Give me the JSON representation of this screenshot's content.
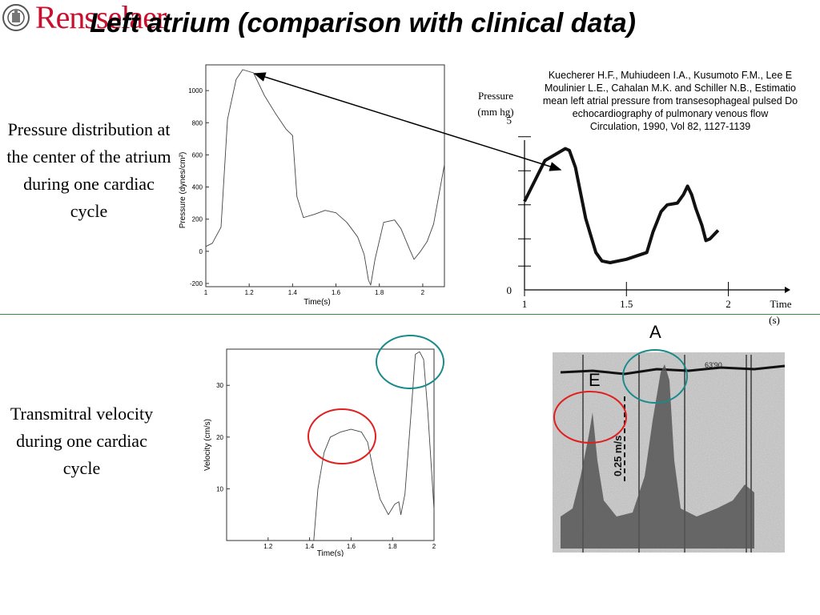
{
  "header": {
    "logo_wordmark": "Rensselaer",
    "logo_seal_text": "RENSSELAER POLYTECHNIC INSTITUTE 1824",
    "title": "Left atrium (comparison with clinical data)"
  },
  "descriptions": {
    "pressure": "Pressure distribution at the center of the atrium during one cardiac cycle",
    "velocity": "Transmitral velocity during one cardiac cycle"
  },
  "citation": {
    "lines": [
      "Kuecherer H.F., Muhiudeen I.A., Kusumoto F.M., Lee E",
      "Moulinier L.E., Cahalan M.K. and Schiller N.B., Estimatio",
      "mean left atrial pressure from transesophageal pulsed Do",
      "echocardiography of pulmonary venous flow",
      "Circulation, 1990, Vol 82, 1127-1139"
    ]
  },
  "echo_labels": {
    "a_wave": "A",
    "e_wave": "E",
    "scale_bar": "0.25 m/s",
    "marker_text": "63'90"
  },
  "colors": {
    "title": "#000000",
    "logo": "#c8102e",
    "separator": "#3a8a3a",
    "e_circle": "#e02020",
    "a_circle": "#1a8a8a"
  },
  "chart_data": [
    {
      "id": "sim-pressure",
      "type": "line",
      "title": "",
      "xlabel": "Time(s)",
      "ylabel": "Pressure (dynes/cm²)",
      "xlim": [
        1,
        2.1
      ],
      "ylim": [
        -220,
        1160
      ],
      "xticks": [
        1,
        1.2,
        1.4,
        1.6,
        1.8,
        2
      ],
      "yticks": [
        -200,
        0,
        200,
        400,
        600,
        800,
        1000
      ],
      "grid": false,
      "series": [
        {
          "x": [
            1.0,
            1.03,
            1.07,
            1.1,
            1.14,
            1.17,
            1.22,
            1.27,
            1.32,
            1.37,
            1.4,
            1.42,
            1.45,
            1.5,
            1.55,
            1.6,
            1.65,
            1.7,
            1.73,
            1.75,
            1.76,
            1.78,
            1.82,
            1.87,
            1.9,
            1.94,
            1.96,
            1.99,
            2.02,
            2.05,
            2.1
          ],
          "y": [
            30,
            50,
            150,
            820,
            1070,
            1130,
            1110,
            970,
            860,
            760,
            720,
            340,
            210,
            230,
            255,
            240,
            180,
            90,
            -20,
            -180,
            -210,
            -50,
            180,
            195,
            140,
            10,
            -50,
            0,
            60,
            170,
            540
          ]
        }
      ]
    },
    {
      "id": "clinical-pressure",
      "type": "line",
      "title": "",
      "xlabel": "Time (s)",
      "ylabel": "Pressure (mm hg)",
      "xlim": [
        1,
        2.1
      ],
      "ylim": [
        0,
        5.6
      ],
      "xticks": [
        1,
        1.5,
        2
      ],
      "yticks": [
        0,
        5
      ],
      "grid": false,
      "series": [
        {
          "x": [
            1.0,
            1.1,
            1.2,
            1.22,
            1.25,
            1.3,
            1.35,
            1.38,
            1.42,
            1.5,
            1.6,
            1.63,
            1.65,
            1.67,
            1.7,
            1.75,
            1.78,
            1.8,
            1.82,
            1.84,
            1.87,
            1.89,
            1.91,
            1.95
          ],
          "y": [
            2.6,
            3.8,
            4.15,
            4.1,
            3.6,
            2.1,
            1.1,
            0.85,
            0.8,
            0.9,
            1.1,
            1.7,
            2.0,
            2.3,
            2.5,
            2.55,
            2.8,
            3.05,
            2.8,
            2.4,
            1.9,
            1.45,
            1.5,
            1.75
          ]
        }
      ],
      "annotations": [
        {
          "text": "Pressure (mm hg)"
        }
      ]
    },
    {
      "id": "sim-velocity",
      "type": "line",
      "title": "",
      "xlabel": "Time(s)",
      "ylabel": "Velocity (cm/s)",
      "xlim": [
        1,
        2
      ],
      "ylim": [
        0,
        37
      ],
      "xticks": [
        1.2,
        1.4,
        1.6,
        1.8,
        2
      ],
      "yticks": [
        10,
        20,
        30
      ],
      "grid": false,
      "series": [
        {
          "x": [
            1.42,
            1.44,
            1.47,
            1.5,
            1.55,
            1.6,
            1.65,
            1.68,
            1.71,
            1.74,
            1.78,
            1.81,
            1.83,
            1.84,
            1.86,
            1.89,
            1.91,
            1.93,
            1.95,
            1.97,
            2.0
          ],
          "y": [
            0,
            10,
            17,
            20,
            21,
            21.5,
            21,
            19,
            13,
            8,
            5,
            7,
            7.5,
            5,
            9,
            25,
            36,
            36.5,
            35,
            25,
            6
          ]
        }
      ]
    }
  ]
}
